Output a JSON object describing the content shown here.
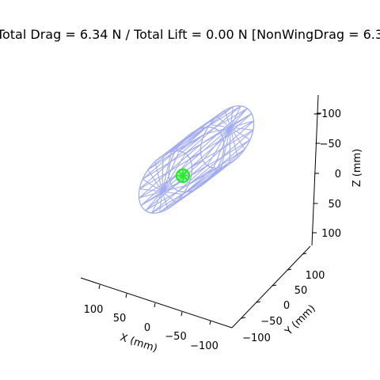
{
  "chart_data": {
    "type": "3d-wireframe",
    "title": "Total Drag = 6.34 N / Total Lift = 0.00 N [NonWingDrag = 6.3",
    "axes": {
      "x": {
        "label": "X (mm)",
        "ticks": [
          "100",
          "50",
          "0",
          "−50",
          "−100"
        ]
      },
      "y": {
        "label": "Y (mm)",
        "ticks": [
          "−100",
          "−50",
          "0",
          "50",
          "100"
        ]
      },
      "z": {
        "label": "Z (mm)",
        "ticks": [
          "−100",
          "−50",
          "0",
          "50",
          "100"
        ]
      }
    },
    "mesh": {
      "shape": "cylinder",
      "color": "#a2acf2"
    },
    "marker": {
      "color": "#22ee22"
    },
    "grid": false
  }
}
